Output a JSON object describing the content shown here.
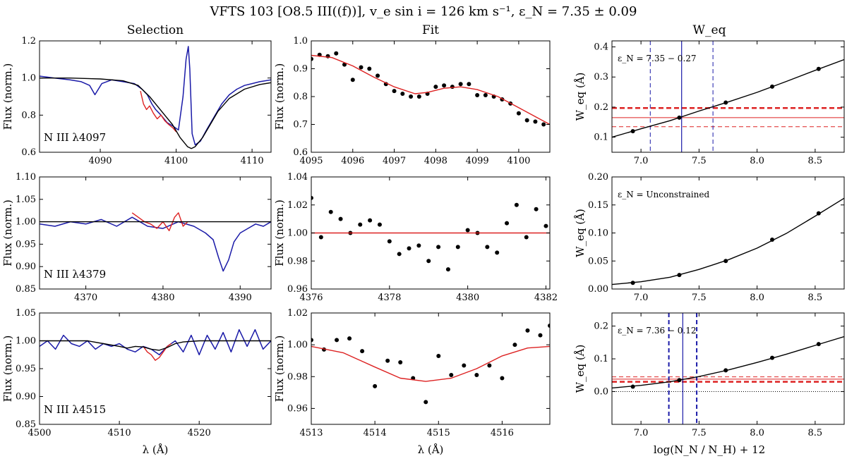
{
  "figure": {
    "suptitle": "VFTS 103 [O8.5 III((f))], v_e sin i = 126 km s⁻¹, ε_N = 7.35 ± 0.09",
    "columns": [
      "Selection",
      "Fit",
      "W_eq"
    ],
    "xlabels": [
      "λ (Å)",
      "λ (Å)",
      "log(N_N / N_H) + 12"
    ],
    "colors": {
      "observed": "#1a1aa8",
      "selected": "#dd2222",
      "model": "#000000",
      "fit": "#dd2222",
      "points": "#000000"
    }
  },
  "chart_data": [
    {
      "type": "line",
      "panel": "selection-4097",
      "ylabel": "Flux (norm.)",
      "line_label": "N III λ4097",
      "xlim": [
        4082,
        4112.5
      ],
      "ylim": [
        0.6,
        1.2
      ],
      "xticks": [
        4090,
        4100,
        4110
      ],
      "yticks": [
        0.6,
        0.8,
        1.0,
        1.2
      ],
      "ytick_labels": [
        "0.6",
        "0.8",
        "1.0",
        "1.2"
      ],
      "series": [
        {
          "role": "observed",
          "x": [
            4082,
            4084,
            4086,
            4087.5,
            4088.6,
            4089.3,
            4090.2,
            4091.5,
            4093,
            4094.5,
            4095.5,
            4096.2,
            4096.8,
            4097.3,
            4098,
            4098.8,
            4099.6,
            4100.3,
            4100.9,
            4101.3,
            4101.6,
            4101.8,
            4102.1,
            4102.5,
            4103.2,
            4104,
            4105,
            4106,
            4107,
            4108,
            4109,
            4110,
            4111,
            4112.5
          ],
          "y": [
            1.01,
            1.0,
            0.99,
            0.98,
            0.96,
            0.91,
            0.97,
            0.99,
            0.98,
            0.97,
            0.94,
            0.91,
            0.86,
            0.83,
            0.8,
            0.76,
            0.74,
            0.72,
            0.9,
            1.1,
            1.17,
            1.05,
            0.7,
            0.64,
            0.66,
            0.72,
            0.79,
            0.86,
            0.91,
            0.94,
            0.96,
            0.97,
            0.98,
            0.99
          ]
        },
        {
          "role": "selected",
          "x": [
            4095.3,
            4095.7,
            4096.1,
            4096.5,
            4097,
            4097.5,
            4098,
            4098.5,
            4099,
            4099.6,
            4100.0
          ],
          "y": [
            0.93,
            0.86,
            0.83,
            0.85,
            0.81,
            0.78,
            0.8,
            0.77,
            0.75,
            0.73,
            0.71
          ]
        },
        {
          "role": "model",
          "x": [
            4082,
            4086,
            4090,
            4093,
            4095,
            4096.5,
            4097.5,
            4098.5,
            4099.5,
            4100.5,
            4101.5,
            4102,
            4102.5,
            4103.5,
            4104.5,
            4105.5,
            4107,
            4109,
            4111,
            4112.5
          ],
          "y": [
            1.0,
            1.0,
            0.995,
            0.985,
            0.96,
            0.9,
            0.85,
            0.8,
            0.75,
            0.68,
            0.63,
            0.62,
            0.63,
            0.68,
            0.75,
            0.82,
            0.89,
            0.94,
            0.965,
            0.975
          ]
        }
      ]
    },
    {
      "type": "scatter",
      "panel": "fit-4097",
      "ylabel": "Flux (norm.)",
      "xlim": [
        4095,
        4100.75
      ],
      "ylim": [
        0.6,
        1.0
      ],
      "xticks": [
        4095,
        4096,
        4097,
        4098,
        4099,
        4100
      ],
      "yticks": [
        0.6,
        0.7,
        0.8,
        0.9,
        1.0
      ],
      "ytick_labels": [
        "0.6",
        "0.7",
        "0.8",
        "0.9",
        "1.0"
      ],
      "series": [
        {
          "role": "points",
          "x": [
            4095.0,
            4095.2,
            4095.4,
            4095.6,
            4095.8,
            4096.0,
            4096.2,
            4096.4,
            4096.6,
            4096.8,
            4097.0,
            4097.2,
            4097.4,
            4097.6,
            4097.8,
            4098.0,
            4098.2,
            4098.4,
            4098.6,
            4098.8,
            4099.0,
            4099.2,
            4099.4,
            4099.6,
            4099.8,
            4100.0,
            4100.2,
            4100.4,
            4100.6
          ],
          "y": [
            0.935,
            0.95,
            0.945,
            0.955,
            0.915,
            0.86,
            0.905,
            0.9,
            0.875,
            0.845,
            0.82,
            0.81,
            0.8,
            0.8,
            0.81,
            0.835,
            0.84,
            0.835,
            0.845,
            0.845,
            0.805,
            0.805,
            0.8,
            0.79,
            0.775,
            0.74,
            0.715,
            0.71,
            0.7
          ]
        },
        {
          "role": "fit",
          "x": [
            4095,
            4095.5,
            4096,
            4096.5,
            4097,
            4097.5,
            4097.8,
            4098.2,
            4098.6,
            4099,
            4099.5,
            4100,
            4100.5,
            4100.75
          ],
          "y": [
            0.948,
            0.94,
            0.91,
            0.87,
            0.835,
            0.81,
            0.815,
            0.83,
            0.835,
            0.825,
            0.8,
            0.76,
            0.72,
            0.7
          ]
        }
      ]
    },
    {
      "type": "line",
      "panel": "weq-4097",
      "ylabel": "W_eq (Å)",
      "annotation": "ε_N = 7.35 − 0.27",
      "xlim": [
        6.75,
        8.75
      ],
      "ylim": [
        0.05,
        0.42
      ],
      "xticks": [
        7.0,
        7.5,
        8.0,
        8.5
      ],
      "yticks": [
        0.1,
        0.2,
        0.3,
        0.4
      ],
      "ytick_labels": [
        "0.1",
        "0.2",
        "0.3",
        "0.4"
      ],
      "series": [
        {
          "role": "points",
          "x": [
            6.93,
            7.33,
            7.73,
            8.13,
            8.53
          ],
          "y": [
            0.12,
            0.165,
            0.215,
            0.268,
            0.327
          ]
        },
        {
          "role": "model",
          "x": [
            6.75,
            7.0,
            7.25,
            7.5,
            7.75,
            8.0,
            8.25,
            8.5,
            8.75
          ],
          "y": [
            0.1,
            0.128,
            0.155,
            0.187,
            0.217,
            0.249,
            0.285,
            0.322,
            0.358
          ]
        }
      ],
      "hlines": [
        {
          "y": 0.165,
          "style": "solid-thin"
        },
        {
          "y": 0.197,
          "style": "dashed-thick"
        },
        {
          "y": 0.135,
          "style": "dashed-thin"
        }
      ],
      "vlines": [
        {
          "x": 7.35,
          "style": "solid"
        },
        {
          "x": 7.08,
          "style": "dashed-thin"
        },
        {
          "x": 7.62,
          "style": "dashed-thin"
        }
      ]
    },
    {
      "type": "line",
      "panel": "selection-4379",
      "ylabel": "Flux (norm.)",
      "line_label": "N III λ4379",
      "xlim": [
        4364,
        4394
      ],
      "ylim": [
        0.85,
        1.1
      ],
      "xticks": [
        4370,
        4380,
        4390
      ],
      "yticks": [
        0.85,
        0.9,
        0.95,
        1.0,
        1.05,
        1.1
      ],
      "ytick_labels": [
        "0.85",
        "0.90",
        "0.95",
        "1.00",
        "1.05",
        "1.10"
      ],
      "series": [
        {
          "role": "observed",
          "x": [
            4364,
            4366,
            4368,
            4370,
            4372,
            4374,
            4376,
            4378,
            4380,
            4382,
            4384,
            4385.5,
            4386.5,
            4387.2,
            4387.8,
            4388.5,
            4389.2,
            4390,
            4391,
            4392,
            4393,
            4394
          ],
          "y": [
            0.995,
            0.99,
            1.0,
            0.995,
            1.005,
            0.99,
            1.01,
            0.99,
            0.985,
            1.0,
            0.99,
            0.975,
            0.96,
            0.92,
            0.89,
            0.915,
            0.955,
            0.975,
            0.985,
            0.995,
            0.99,
            1.0
          ]
        },
        {
          "role": "selected",
          "x": [
            4376,
            4376.8,
            4377.6,
            4378.4,
            4379.2,
            4380,
            4380.8,
            4381.5,
            4382,
            4382.6,
            4383.2
          ],
          "y": [
            1.02,
            1.01,
            1.0,
            0.995,
            0.985,
            1.0,
            0.98,
            1.01,
            1.02,
            0.99,
            1.0
          ]
        },
        {
          "role": "model",
          "x": [
            4364,
            4394
          ],
          "y": [
            1.0,
            1.0
          ]
        }
      ]
    },
    {
      "type": "scatter",
      "panel": "fit-4379",
      "ylabel": "Flux (norm.)",
      "xlim": [
        4376,
        4382.1
      ],
      "ylim": [
        0.96,
        1.04
      ],
      "xticks": [
        4376,
        4378,
        4380,
        4382
      ],
      "yticks": [
        0.96,
        0.98,
        1.0,
        1.02,
        1.04
      ],
      "ytick_labels": [
        "0.96",
        "0.98",
        "1.00",
        "1.02",
        "1.04"
      ],
      "series": [
        {
          "role": "points",
          "x": [
            4376.0,
            4376.25,
            4376.5,
            4376.75,
            4377.0,
            4377.25,
            4377.5,
            4377.75,
            4378.0,
            4378.25,
            4378.5,
            4378.75,
            4379.0,
            4379.25,
            4379.5,
            4379.75,
            4380.0,
            4380.25,
            4380.5,
            4380.75,
            4381.0,
            4381.25,
            4381.5,
            4381.75,
            4382.0
          ],
          "y": [
            1.025,
            0.997,
            1.015,
            1.01,
            1.0,
            1.006,
            1.009,
            1.006,
            0.994,
            0.985,
            0.989,
            0.991,
            0.98,
            0.99,
            0.974,
            0.99,
            1.002,
            1.0,
            0.99,
            0.986,
            1.007,
            1.02,
            0.997,
            1.017,
            1.005
          ]
        },
        {
          "role": "fit",
          "x": [
            4376,
            4382.1
          ],
          "y": [
            1.0,
            1.0
          ]
        }
      ]
    },
    {
      "type": "line",
      "panel": "weq-4379",
      "ylabel": "W_eq (Å)",
      "annotation": "ε_N = Unconstrained",
      "xlim": [
        6.75,
        8.75
      ],
      "ylim": [
        0.0,
        0.2
      ],
      "xticks": [
        7.0,
        7.5,
        8.0,
        8.5
      ],
      "yticks": [
        0.0,
        0.05,
        0.1,
        0.15,
        0.2
      ],
      "ytick_labels": [
        "0.00",
        "0.05",
        "0.10",
        "0.15",
        "0.20"
      ],
      "series": [
        {
          "role": "points",
          "x": [
            6.93,
            7.33,
            7.73,
            8.13,
            8.53
          ],
          "y": [
            0.011,
            0.025,
            0.05,
            0.088,
            0.135
          ]
        },
        {
          "role": "model",
          "x": [
            6.75,
            7.0,
            7.25,
            7.5,
            7.75,
            8.0,
            8.25,
            8.5,
            8.75
          ],
          "y": [
            0.008,
            0.013,
            0.021,
            0.035,
            0.052,
            0.073,
            0.099,
            0.13,
            0.162
          ]
        }
      ],
      "hlines": [],
      "vlines": []
    },
    {
      "type": "line",
      "panel": "selection-4515",
      "ylabel": "Flux (norm.)",
      "line_label": "N III λ4515",
      "xlim": [
        4500,
        4529
      ],
      "ylim": [
        0.85,
        1.05
      ],
      "xticks": [
        4500,
        4510,
        4520
      ],
      "yticks": [
        0.85,
        0.9,
        0.95,
        1.0,
        1.05
      ],
      "ytick_labels": [
        "0.85",
        "0.90",
        "0.95",
        "1.00",
        "1.05"
      ],
      "series": [
        {
          "role": "observed",
          "x": [
            4500,
            4501,
            4502,
            4503,
            4504,
            4505,
            4506,
            4507,
            4508,
            4509,
            4510,
            4511,
            4512,
            4513,
            4514,
            4515,
            4516,
            4517,
            4518,
            4519,
            4520,
            4521,
            4522,
            4523,
            4524,
            4525,
            4526,
            4527,
            4528,
            4529
          ],
          "y": [
            0.99,
            1.0,
            0.985,
            1.01,
            0.995,
            0.99,
            1.0,
            0.985,
            0.995,
            0.99,
            0.995,
            0.985,
            0.98,
            0.99,
            0.985,
            0.975,
            0.99,
            1.0,
            0.98,
            1.01,
            0.975,
            1.01,
            0.985,
            1.015,
            0.98,
            1.02,
            0.99,
            1.02,
            0.985,
            1.0
          ]
        },
        {
          "role": "selected",
          "x": [
            4513,
            4513.5,
            4514,
            4514.5,
            4515,
            4515.5,
            4516,
            4516.5
          ],
          "y": [
            0.99,
            0.98,
            0.975,
            0.965,
            0.97,
            0.98,
            0.99,
            0.995
          ]
        },
        {
          "role": "model",
          "x": [
            4500,
            4506,
            4508,
            4510,
            4511,
            4512,
            4513,
            4514,
            4515,
            4516,
            4517,
            4518,
            4520,
            4523,
            4529
          ],
          "y": [
            1.0,
            1.0,
            0.995,
            0.99,
            0.987,
            0.99,
            0.989,
            0.985,
            0.983,
            0.988,
            0.995,
            0.998,
            1.0,
            1.0,
            1.0
          ]
        }
      ]
    },
    {
      "type": "scatter",
      "panel": "fit-4515",
      "ylabel": "Flux (norm.)",
      "xlim": [
        4513,
        4516.75
      ],
      "ylim": [
        0.95,
        1.02
      ],
      "xticks": [
        4513,
        4514,
        4515,
        4516
      ],
      "yticks": [
        0.96,
        0.98,
        1.0,
        1.02
      ],
      "ytick_labels": [
        "0.96",
        "0.98",
        "1.00",
        "1.02"
      ],
      "series": [
        {
          "role": "points",
          "x": [
            4513.0,
            4513.2,
            4513.4,
            4513.6,
            4513.8,
            4514.0,
            4514.2,
            4514.4,
            4514.6,
            4514.8,
            4515.0,
            4515.2,
            4515.4,
            4515.6,
            4515.8,
            4516.0,
            4516.2,
            4516.4,
            4516.6,
            4516.75
          ],
          "y": [
            1.003,
            0.997,
            1.003,
            1.004,
            0.996,
            0.974,
            0.99,
            0.989,
            0.979,
            0.964,
            0.993,
            0.981,
            0.987,
            0.981,
            0.987,
            0.979,
            1.0,
            1.009,
            1.006,
            1.012
          ]
        },
        {
          "role": "fit",
          "x": [
            4513,
            4513.5,
            4514,
            4514.4,
            4514.8,
            4515.2,
            4515.6,
            4516,
            4516.4,
            4516.75
          ],
          "y": [
            0.999,
            0.995,
            0.986,
            0.979,
            0.977,
            0.979,
            0.985,
            0.993,
            0.998,
            0.999
          ]
        }
      ]
    },
    {
      "type": "line",
      "panel": "weq-4515",
      "ylabel": "W_eq (Å)",
      "annotation": "ε_N = 7.36 − 0.12",
      "xlim": [
        6.75,
        8.75
      ],
      "ylim": [
        -0.1,
        0.24
      ],
      "xticks": [
        7.0,
        7.5,
        8.0,
        8.5
      ],
      "yticks": [
        0.0,
        0.1,
        0.2
      ],
      "ytick_labels": [
        "0.0",
        "0.1",
        "0.2"
      ],
      "series": [
        {
          "role": "points",
          "x": [
            6.93,
            7.33,
            7.73,
            8.13,
            8.53
          ],
          "y": [
            0.015,
            0.035,
            0.065,
            0.103,
            0.145
          ]
        },
        {
          "role": "model",
          "x": [
            6.75,
            7.0,
            7.25,
            7.5,
            7.75,
            8.0,
            8.25,
            8.5,
            8.75
          ],
          "y": [
            0.011,
            0.019,
            0.03,
            0.046,
            0.066,
            0.089,
            0.114,
            0.141,
            0.168
          ]
        }
      ],
      "hlines": [
        {
          "y": 0.038,
          "style": "solid-thin"
        },
        {
          "y": 0.03,
          "style": "dashed-thick"
        },
        {
          "y": 0.045,
          "style": "dashed-thin"
        },
        {
          "y": 0.0,
          "style": "dotted-black"
        }
      ],
      "vlines": [
        {
          "x": 7.36,
          "style": "solid"
        },
        {
          "x": 7.24,
          "style": "dashed-thick"
        },
        {
          "x": 7.48,
          "style": "dashed-thick"
        }
      ]
    }
  ]
}
